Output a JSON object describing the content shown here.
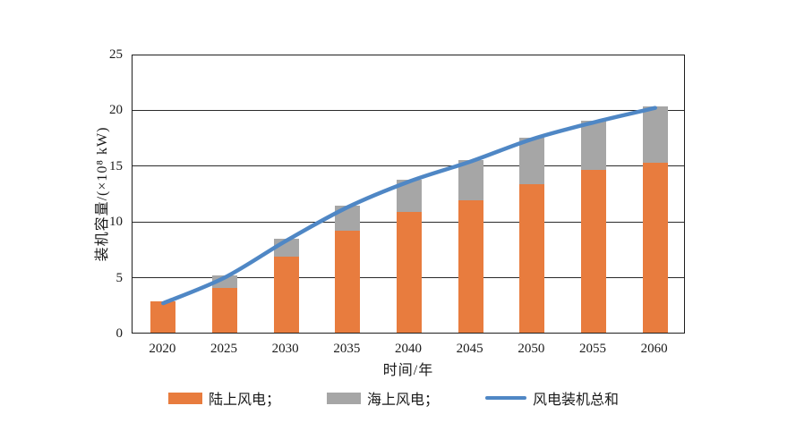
{
  "chart_data": {
    "type": "bar",
    "subtype": "stacked-bars-with-total-line",
    "title": "",
    "categories": [
      "2020",
      "2025",
      "2030",
      "2035",
      "2040",
      "2045",
      "2050",
      "2055",
      "2060"
    ],
    "series": [
      {
        "name": "陆上风电",
        "type": "bar",
        "color": "#E87C3E",
        "values": [
          2.8,
          4.0,
          6.8,
          9.1,
          10.8,
          11.9,
          13.3,
          14.6,
          15.2
        ]
      },
      {
        "name": "海上风电",
        "type": "bar",
        "color": "#A6A6A6",
        "values": [
          0.0,
          1.1,
          1.6,
          2.3,
          2.9,
          3.6,
          4.2,
          4.4,
          5.1
        ]
      },
      {
        "name": "风电装机总和",
        "type": "line",
        "color": "#4F87C5",
        "values": [
          2.8,
          5.1,
          8.4,
          11.4,
          13.7,
          15.5,
          17.5,
          19.0,
          20.3
        ]
      }
    ],
    "xlabel": "时间/年",
    "ylabel": "装机容量/(×10⁸ kW)",
    "ylim": [
      0,
      25
    ],
    "yticks": [
      0,
      5,
      10,
      15,
      20,
      25
    ],
    "grid": true,
    "legend_position": "bottom",
    "legend_labels": [
      "陆上风电；",
      "海上风电；",
      "风电装机总和"
    ]
  },
  "colors": {
    "onshore": "#E87C3E",
    "offshore": "#A6A6A6",
    "total_line": "#4F87C5",
    "axis": "#1f1f1f",
    "background": "#ffffff"
  }
}
